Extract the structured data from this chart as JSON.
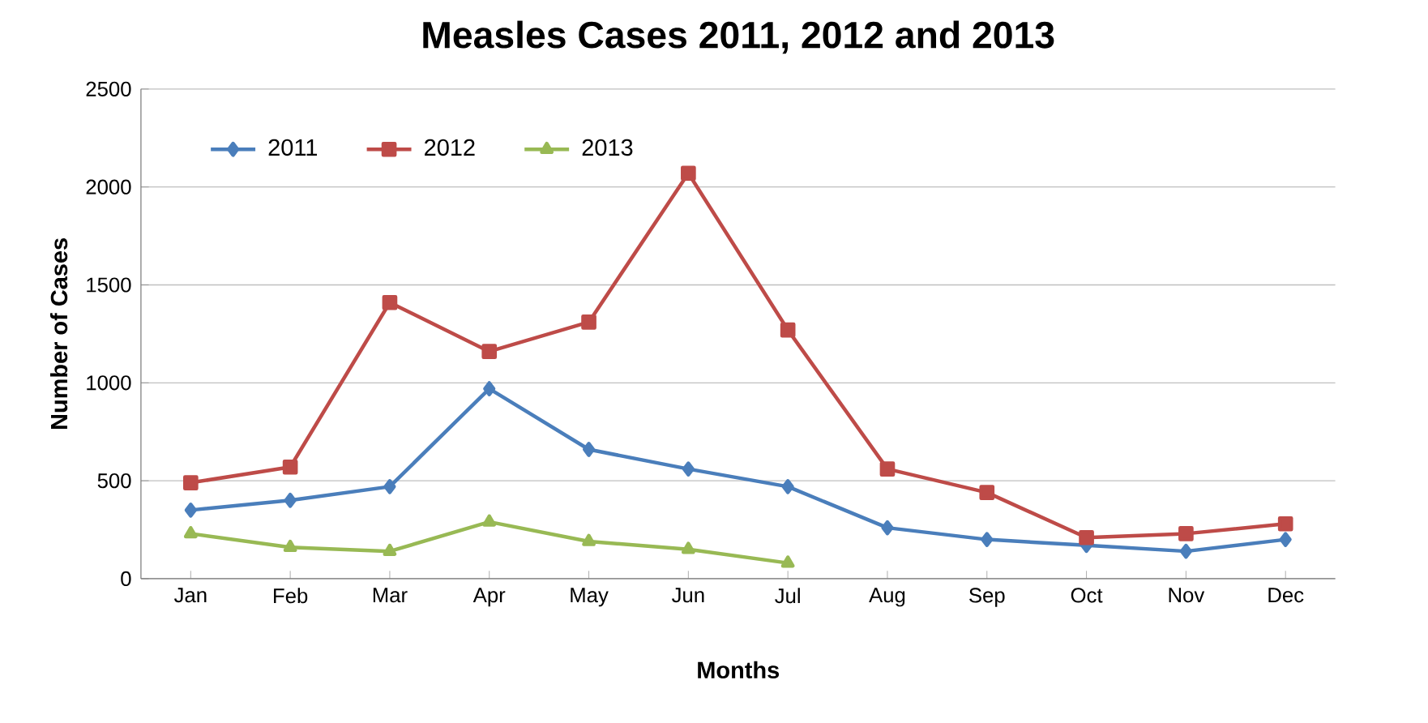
{
  "chart_data": {
    "type": "line",
    "title": "Measles Cases 2011, 2012 and 2013",
    "xlabel": "Months",
    "ylabel": "Number of Cases",
    "categories": [
      "Jan",
      "Feb",
      "Mar",
      "Apr",
      "May",
      "Jun",
      "Jul",
      "Aug",
      "Sep",
      "Oct",
      "Nov",
      "Dec"
    ],
    "series": [
      {
        "name": "2011",
        "color": "#4a7ebb",
        "marker": "diamond",
        "values": [
          350,
          400,
          470,
          970,
          660,
          560,
          470,
          260,
          200,
          170,
          140,
          200
        ]
      },
      {
        "name": "2012",
        "color": "#be4b48",
        "marker": "square",
        "values": [
          490,
          570,
          1410,
          1160,
          1310,
          2070,
          1270,
          560,
          440,
          210,
          230,
          280
        ]
      },
      {
        "name": "2013",
        "color": "#98b954",
        "marker": "triangle",
        "values": [
          230,
          160,
          140,
          290,
          190,
          150,
          80,
          null,
          null,
          null,
          null,
          null
        ]
      }
    ],
    "ylim": [
      0,
      2500
    ],
    "yticks": [
      0,
      500,
      1000,
      1500,
      2000,
      2500
    ],
    "grid": "y",
    "legend": "top left",
    "line_style": "solid"
  }
}
